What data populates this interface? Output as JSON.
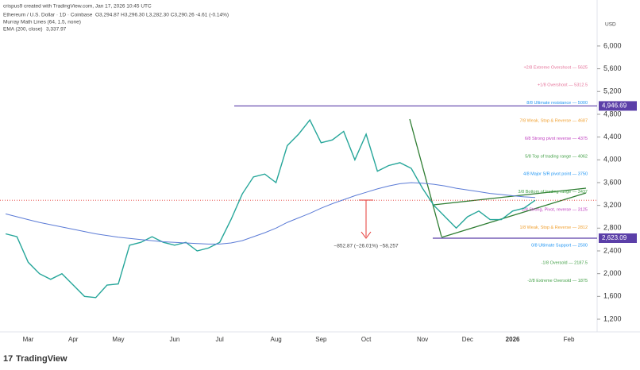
{
  "header": {
    "credit": "crispus9 created with TradingView.com, Jan 17, 2026 10:45 UTC",
    "symbol": "Ethereum / U.S. Dollar · 1D · Coinbase",
    "ohlc": "O3,294.87 H3,296.30 L3,282.30 C3,290.26 -4.61 (-0.14%)",
    "indicator1": "Murray Math Lines (64, 1.5, none)",
    "indicator2": "EMA (200, close)",
    "indicator2_value": "3,337.97"
  },
  "footer": "TradingView",
  "chart_data": {
    "type": "line",
    "currency": "USD",
    "categories": [
      null,
      null,
      "Mar",
      null,
      null,
      null,
      "Apr",
      null,
      null,
      null,
      "May",
      null,
      null,
      null,
      null,
      "Jun",
      null,
      null,
      null,
      "Jul",
      null,
      null,
      null,
      null,
      "Aug",
      null,
      null,
      null,
      "Sep",
      null,
      null,
      null,
      "Oct",
      null,
      null,
      null,
      null,
      "Nov",
      null,
      null,
      null,
      "Dec",
      null,
      null,
      null,
      "2026",
      null,
      null,
      null,
      null,
      "Feb",
      null,
      null
    ],
    "series": [
      {
        "name": "Ethereum / U.S. Dollar",
        "color": "#26a69a",
        "values": [
          2700,
          2650,
          2200,
          2000,
          1900,
          2000,
          1800,
          1600,
          1580,
          1800,
          1820,
          2500,
          2550,
          2650,
          2550,
          2500,
          2550,
          2400,
          2450,
          2550,
          2950,
          3400,
          3700,
          3750,
          3600,
          4250,
          4450,
          4700,
          4300,
          4350,
          4500,
          4000,
          4450,
          3800,
          3900,
          3950,
          3850,
          3500,
          3200,
          3000,
          2800,
          3000,
          3100,
          2950,
          2950,
          3100,
          3150,
          3290,
          null,
          null,
          null,
          null,
          null
        ]
      },
      {
        "name": "EMA (200, close)",
        "color": "#5b7bd6",
        "values": [
          3050,
          3000,
          2950,
          2900,
          2860,
          2820,
          2780,
          2740,
          2700,
          2670,
          2640,
          2620,
          2600,
          2580,
          2560,
          2550,
          2540,
          2530,
          2520,
          2520,
          2540,
          2580,
          2650,
          2720,
          2800,
          2900,
          2980,
          3060,
          3150,
          3230,
          3300,
          3370,
          3430,
          3490,
          3540,
          3580,
          3600,
          3590,
          3570,
          3540,
          3500,
          3470,
          3440,
          3410,
          3390,
          3370,
          3350,
          3338,
          null,
          null,
          null,
          null,
          null
        ]
      }
    ],
    "ylim": [
      977,
      6808
    ],
    "yticks": [
      {
        "value": 1200,
        "label": "1,200"
      },
      {
        "value": 1600,
        "label": "1,600"
      },
      {
        "value": 2000,
        "label": "2,000"
      },
      {
        "value": 2400,
        "label": "2,400"
      },
      {
        "value": 2800,
        "label": "2,800"
      },
      {
        "value": 3200,
        "label": "3,200"
      },
      {
        "value": 3600,
        "label": "3,600"
      },
      {
        "value": 4000,
        "label": "4,000"
      },
      {
        "value": 4400,
        "label": "4,400"
      },
      {
        "value": 4800,
        "label": "4,800"
      },
      {
        "value": 5200,
        "label": "5,200"
      },
      {
        "value": 5600,
        "label": "5,600"
      },
      {
        "value": 6000,
        "label": "6,000"
      }
    ],
    "levels": [
      {
        "value": 4946.69,
        "label": "4,946.69",
        "color": "#5b3fa8"
      },
      {
        "value": 2623.09,
        "label": "2,623.09",
        "color": "#5b3fa8"
      }
    ],
    "last_price": 3290.26,
    "murray": [
      {
        "value": 5625,
        "text": "+2/8 Extreme Overshoot — 5625",
        "color": "#e5739a"
      },
      {
        "value": 5312.5,
        "text": "+1/8 Overshoot — 5312.5",
        "color": "#e5739a"
      },
      {
        "value": 5000,
        "text": "8/8 Ultimate resistance — 5000",
        "color": "#2196f3"
      },
      {
        "value": 4687,
        "text": "7/8 Weak, Stop & Reverse — 4687",
        "color": "#f0a030"
      },
      {
        "value": 4375,
        "text": "6/8 Strong pivot reverse — 4375",
        "color": "#c040c0"
      },
      {
        "value": 4062,
        "text": "5/8 Top of trading range — 4062",
        "color": "#43a047"
      },
      {
        "value": 3750,
        "text": "4/8 Major S/R pivot point — 3750",
        "color": "#2196f3"
      },
      {
        "value": 3437,
        "text": "3/8 Bottom of trading range — 3437",
        "color": "#43a047"
      },
      {
        "value": 3125,
        "text": "2/8 Strong, Pivot, reverse — 3125",
        "color": "#c040c0"
      },
      {
        "value": 2812,
        "text": "1/8 Weak, Stop & Reverse — 2812",
        "color": "#f0a030"
      },
      {
        "value": 2500,
        "text": "0/8 Ultimate Support — 2500",
        "color": "#2196f3"
      },
      {
        "value": 2187.5,
        "text": "-1/8 Oversold — 2187.5",
        "color": "#43a047"
      },
      {
        "value": 1875,
        "text": "-2/8 Extreme Oversold — 1875",
        "color": "#43a047"
      }
    ],
    "measure": "−852.87 (−26.01%) −58,257"
  }
}
